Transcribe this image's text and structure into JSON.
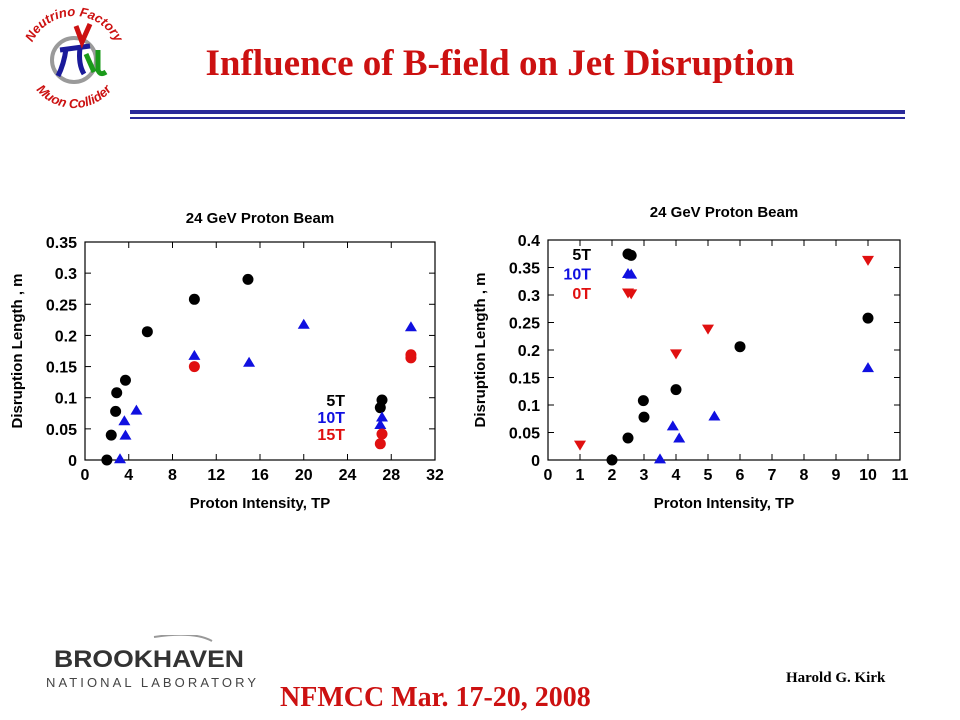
{
  "header": {
    "title": "Influence of B-field on Jet Disruption",
    "logo_top_text": "Neutrino Factory",
    "logo_bottom_text": "Muon Collider"
  },
  "footer": {
    "event": "NFMCC Mar. 17-20, 2008",
    "author": "Harold G. Kirk",
    "logo_main": "BROOKHAVEN",
    "logo_sub": "NATIONAL LABORATORY"
  },
  "colors": {
    "title": "#cc1111",
    "rule": "#2a2a9a",
    "black": "#000000",
    "blue": "#1010e0",
    "red": "#e01010"
  },
  "chart_data": [
    {
      "type": "scatter",
      "title": "24 GeV Proton Beam",
      "xlabel": "Proton Intensity, TP",
      "ylabel": "Disruption Length ,  m",
      "xlim": [
        0,
        32
      ],
      "ylim": [
        0,
        0.35
      ],
      "xticks": [
        0,
        4,
        8,
        12,
        16,
        20,
        24,
        28,
        32
      ],
      "yticks": [
        0,
        0.05,
        0.1,
        0.15,
        0.2,
        0.25,
        0.3,
        0.35
      ],
      "ytick_labels": [
        "0",
        "0.05",
        "0.1",
        "0.15",
        "0.2",
        "0.25",
        "0.3",
        "0.35"
      ],
      "legend_position": "bottom-right",
      "series": [
        {
          "name": "5T",
          "color": "#000000",
          "marker": "circle",
          "points": [
            [
              2.0,
              0.0
            ],
            [
              2.4,
              0.04
            ],
            [
              2.8,
              0.078
            ],
            [
              2.9,
              0.108
            ],
            [
              3.7,
              0.128
            ],
            [
              5.7,
              0.206
            ],
            [
              10.0,
              0.258
            ],
            [
              14.9,
              0.29
            ],
            [
              27.0,
              0.084
            ]
          ]
        },
        {
          "name": "10T",
          "color": "#1010e0",
          "marker": "triangle-up",
          "points": [
            [
              3.2,
              0.002
            ],
            [
              3.6,
              0.063
            ],
            [
              3.7,
              0.04
            ],
            [
              4.7,
              0.08
            ],
            [
              10.0,
              0.168
            ],
            [
              15.0,
              0.157
            ],
            [
              20.0,
              0.218
            ],
            [
              27.0,
              0.057
            ],
            [
              29.8,
              0.214
            ]
          ]
        },
        {
          "name": "15T",
          "color": "#e01010",
          "marker": "circle",
          "points": [
            [
              10.0,
              0.15
            ],
            [
              27.0,
              0.026
            ],
            [
              29.8,
              0.164
            ],
            [
              29.8,
              0.169
            ]
          ]
        }
      ]
    },
    {
      "type": "scatter",
      "title": "24 GeV Proton Beam",
      "xlabel": "Proton Intensity, TP",
      "ylabel": "Disruption Length ,  m",
      "xlim": [
        0,
        11
      ],
      "ylim": [
        0,
        0.4
      ],
      "xticks": [
        0,
        1,
        2,
        3,
        4,
        5,
        6,
        7,
        8,
        9,
        10,
        11
      ],
      "yticks": [
        0,
        0.05,
        0.1,
        0.15,
        0.2,
        0.25,
        0.3,
        0.35,
        0.4
      ],
      "ytick_labels": [
        "0",
        "0.05",
        "0.1",
        "0.15",
        "0.2",
        "0.25",
        "0.3",
        "0.35",
        "0.4"
      ],
      "legend_position": "top-left",
      "series": [
        {
          "name": "5T",
          "color": "#000000",
          "marker": "circle",
          "points": [
            [
              2.0,
              0.0
            ],
            [
              2.5,
              0.04
            ],
            [
              2.6,
              0.372
            ],
            [
              2.98,
              0.108
            ],
            [
              3.0,
              0.078
            ],
            [
              4.0,
              0.128
            ],
            [
              6.0,
              0.206
            ],
            [
              10.0,
              0.258
            ]
          ]
        },
        {
          "name": "10T",
          "color": "#1010e0",
          "marker": "triangle-up",
          "points": [
            [
              2.6,
              0.338
            ],
            [
              3.5,
              0.002
            ],
            [
              3.9,
              0.062
            ],
            [
              4.1,
              0.04
            ],
            [
              5.2,
              0.08
            ],
            [
              10.0,
              0.168
            ]
          ]
        },
        {
          "name": "0T",
          "color": "#e01010",
          "marker": "triangle-down",
          "points": [
            [
              1.0,
              0.027
            ],
            [
              2.6,
              0.302
            ],
            [
              4.0,
              0.193
            ],
            [
              5.0,
              0.238
            ],
            [
              10.0,
              0.363
            ]
          ]
        }
      ]
    }
  ]
}
